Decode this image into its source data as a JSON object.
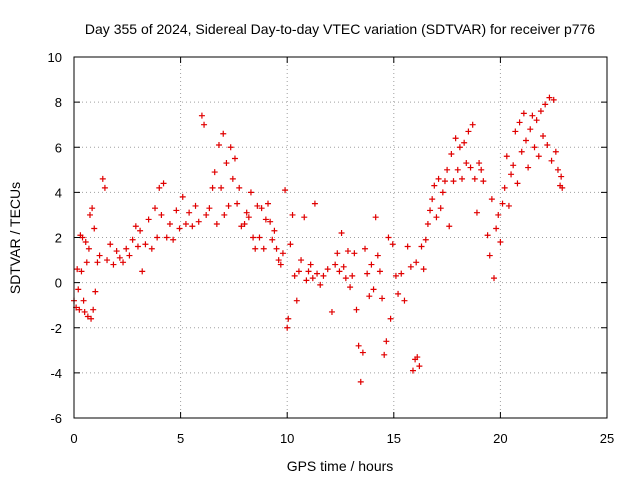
{
  "chart_data": {
    "type": "scatter",
    "title": "Day 355 of 2024, Sidereal Day-to-day VTEC variation (SDTVAR) for receiver p776",
    "xlabel": "GPS time / hours",
    "ylabel": "SDTVAR / TECUs",
    "xlim": [
      0,
      25
    ],
    "ylim": [
      -6,
      10
    ],
    "xticks": [
      0,
      5,
      10,
      15,
      20,
      25
    ],
    "yticks": [
      -6,
      -4,
      -2,
      0,
      2,
      4,
      6,
      8,
      10
    ],
    "grid": true,
    "marker": "+",
    "series": [
      {
        "name": "SDTVAR",
        "color": "#e00000",
        "points": [
          [
            0.0,
            -0.8
          ],
          [
            0.1,
            -1.1
          ],
          [
            0.15,
            0.6
          ],
          [
            0.2,
            -0.3
          ],
          [
            0.25,
            -1.2
          ],
          [
            0.3,
            2.1
          ],
          [
            0.35,
            0.5
          ],
          [
            0.4,
            2.0
          ],
          [
            0.45,
            -0.8
          ],
          [
            0.5,
            -1.3
          ],
          [
            0.55,
            1.8
          ],
          [
            0.6,
            0.9
          ],
          [
            0.65,
            -1.5
          ],
          [
            0.7,
            1.5
          ],
          [
            0.75,
            3.0
          ],
          [
            0.8,
            -1.6
          ],
          [
            0.85,
            3.3
          ],
          [
            0.9,
            -1.2
          ],
          [
            0.95,
            2.4
          ],
          [
            1.0,
            -0.4
          ],
          [
            1.1,
            0.9
          ],
          [
            1.2,
            1.2
          ],
          [
            1.35,
            4.6
          ],
          [
            1.45,
            4.2
          ],
          [
            1.55,
            1.0
          ],
          [
            1.7,
            1.7
          ],
          [
            1.85,
            0.8
          ],
          [
            2.0,
            1.4
          ],
          [
            2.15,
            1.1
          ],
          [
            2.3,
            0.9
          ],
          [
            2.45,
            1.5
          ],
          [
            2.6,
            1.2
          ],
          [
            2.75,
            1.9
          ],
          [
            2.9,
            2.5
          ],
          [
            3.0,
            1.6
          ],
          [
            3.1,
            2.3
          ],
          [
            3.2,
            0.5
          ],
          [
            3.35,
            1.7
          ],
          [
            3.5,
            2.8
          ],
          [
            3.65,
            1.5
          ],
          [
            3.8,
            3.3
          ],
          [
            3.9,
            2.0
          ],
          [
            4.0,
            4.2
          ],
          [
            4.1,
            3.0
          ],
          [
            4.2,
            4.4
          ],
          [
            4.35,
            2.0
          ],
          [
            4.5,
            2.6
          ],
          [
            4.65,
            1.9
          ],
          [
            4.8,
            3.2
          ],
          [
            4.95,
            2.4
          ],
          [
            5.1,
            3.8
          ],
          [
            5.25,
            2.6
          ],
          [
            5.4,
            3.1
          ],
          [
            5.55,
            2.5
          ],
          [
            5.7,
            3.4
          ],
          [
            5.85,
            2.7
          ],
          [
            6.0,
            7.4
          ],
          [
            6.1,
            7.0
          ],
          [
            6.2,
            3.0
          ],
          [
            6.35,
            3.3
          ],
          [
            6.5,
            4.2
          ],
          [
            6.6,
            4.9
          ],
          [
            6.7,
            2.6
          ],
          [
            6.8,
            6.1
          ],
          [
            6.9,
            4.2
          ],
          [
            7.0,
            6.6
          ],
          [
            7.05,
            3.0
          ],
          [
            7.15,
            5.3
          ],
          [
            7.25,
            3.4
          ],
          [
            7.35,
            6.0
          ],
          [
            7.45,
            4.6
          ],
          [
            7.55,
            5.5
          ],
          [
            7.65,
            3.5
          ],
          [
            7.75,
            4.2
          ],
          [
            7.85,
            2.5
          ],
          [
            8.0,
            2.6
          ],
          [
            8.1,
            3.1
          ],
          [
            8.2,
            2.9
          ],
          [
            8.3,
            4.0
          ],
          [
            8.4,
            2.0
          ],
          [
            8.5,
            1.5
          ],
          [
            8.6,
            3.4
          ],
          [
            8.7,
            2.0
          ],
          [
            8.8,
            3.3
          ],
          [
            8.9,
            1.5
          ],
          [
            9.0,
            2.8
          ],
          [
            9.1,
            3.5
          ],
          [
            9.2,
            2.7
          ],
          [
            9.3,
            1.9
          ],
          [
            9.4,
            2.3
          ],
          [
            9.5,
            1.5
          ],
          [
            9.6,
            1.0
          ],
          [
            9.7,
            0.8
          ],
          [
            9.8,
            1.3
          ],
          [
            9.9,
            4.1
          ],
          [
            10.0,
            -2.0
          ],
          [
            10.05,
            -1.6
          ],
          [
            10.15,
            1.7
          ],
          [
            10.25,
            3.0
          ],
          [
            10.35,
            0.3
          ],
          [
            10.45,
            -0.8
          ],
          [
            10.55,
            0.5
          ],
          [
            10.65,
            1.0
          ],
          [
            10.8,
            2.9
          ],
          [
            10.9,
            0.1
          ],
          [
            11.0,
            0.5
          ],
          [
            11.1,
            0.8
          ],
          [
            11.2,
            0.2
          ],
          [
            11.3,
            3.5
          ],
          [
            11.4,
            0.4
          ],
          [
            11.55,
            -0.1
          ],
          [
            11.7,
            0.3
          ],
          [
            11.9,
            0.6
          ],
          [
            12.1,
            -1.3
          ],
          [
            12.25,
            0.8
          ],
          [
            12.35,
            1.3
          ],
          [
            12.45,
            0.5
          ],
          [
            12.55,
            2.2
          ],
          [
            12.65,
            0.7
          ],
          [
            12.75,
            0.2
          ],
          [
            12.85,
            1.4
          ],
          [
            12.95,
            -0.2
          ],
          [
            13.05,
            0.3
          ],
          [
            13.15,
            1.3
          ],
          [
            13.25,
            -1.2
          ],
          [
            13.35,
            -2.8
          ],
          [
            13.45,
            -4.4
          ],
          [
            13.55,
            -3.1
          ],
          [
            13.65,
            1.5
          ],
          [
            13.75,
            0.4
          ],
          [
            13.85,
            -0.6
          ],
          [
            13.95,
            0.8
          ],
          [
            14.05,
            -0.3
          ],
          [
            14.15,
            2.9
          ],
          [
            14.25,
            1.2
          ],
          [
            14.35,
            0.5
          ],
          [
            14.45,
            -0.7
          ],
          [
            14.55,
            -3.2
          ],
          [
            14.65,
            -2.6
          ],
          [
            14.75,
            2.0
          ],
          [
            14.85,
            -1.6
          ],
          [
            14.95,
            1.7
          ],
          [
            15.1,
            0.3
          ],
          [
            15.2,
            -0.5
          ],
          [
            15.35,
            0.4
          ],
          [
            15.5,
            -0.8
          ],
          [
            15.65,
            1.6
          ],
          [
            15.8,
            0.7
          ],
          [
            15.9,
            -3.9
          ],
          [
            16.0,
            -3.4
          ],
          [
            16.05,
            0.9
          ],
          [
            16.1,
            -3.3
          ],
          [
            16.2,
            -3.7
          ],
          [
            16.3,
            1.6
          ],
          [
            16.4,
            0.6
          ],
          [
            16.5,
            1.9
          ],
          [
            16.6,
            2.6
          ],
          [
            16.7,
            3.2
          ],
          [
            16.8,
            3.7
          ],
          [
            16.9,
            4.3
          ],
          [
            17.0,
            2.9
          ],
          [
            17.1,
            4.6
          ],
          [
            17.2,
            3.3
          ],
          [
            17.3,
            4.0
          ],
          [
            17.4,
            4.5
          ],
          [
            17.5,
            5.0
          ],
          [
            17.6,
            2.5
          ],
          [
            17.7,
            5.7
          ],
          [
            17.8,
            4.5
          ],
          [
            17.9,
            6.4
          ],
          [
            18.0,
            5.0
          ],
          [
            18.1,
            6.0
          ],
          [
            18.2,
            4.6
          ],
          [
            18.3,
            6.2
          ],
          [
            18.4,
            5.3
          ],
          [
            18.5,
            6.7
          ],
          [
            18.6,
            5.1
          ],
          [
            18.7,
            7.0
          ],
          [
            18.8,
            4.6
          ],
          [
            18.9,
            3.1
          ],
          [
            19.0,
            5.3
          ],
          [
            19.1,
            5.0
          ],
          [
            19.2,
            4.5
          ],
          [
            19.4,
            2.1
          ],
          [
            19.5,
            1.2
          ],
          [
            19.6,
            3.7
          ],
          [
            19.7,
            0.2
          ],
          [
            19.8,
            2.4
          ],
          [
            19.9,
            3.0
          ],
          [
            20.0,
            1.8
          ],
          [
            20.1,
            3.5
          ],
          [
            20.2,
            4.2
          ],
          [
            20.3,
            5.6
          ],
          [
            20.4,
            3.4
          ],
          [
            20.5,
            4.8
          ],
          [
            20.6,
            5.2
          ],
          [
            20.7,
            6.7
          ],
          [
            20.8,
            4.4
          ],
          [
            20.9,
            7.1
          ],
          [
            21.0,
            5.8
          ],
          [
            21.1,
            7.5
          ],
          [
            21.2,
            6.3
          ],
          [
            21.3,
            5.1
          ],
          [
            21.4,
            6.8
          ],
          [
            21.5,
            7.4
          ],
          [
            21.6,
            6.0
          ],
          [
            21.7,
            7.2
          ],
          [
            21.8,
            5.6
          ],
          [
            21.9,
            7.6
          ],
          [
            22.0,
            6.5
          ],
          [
            22.1,
            7.9
          ],
          [
            22.2,
            6.1
          ],
          [
            22.3,
            8.2
          ],
          [
            22.4,
            5.4
          ],
          [
            22.5,
            8.1
          ],
          [
            22.6,
            5.8
          ],
          [
            22.7,
            5.0
          ],
          [
            22.8,
            4.3
          ],
          [
            22.85,
            4.7
          ],
          [
            22.9,
            4.2
          ]
        ]
      }
    ]
  }
}
